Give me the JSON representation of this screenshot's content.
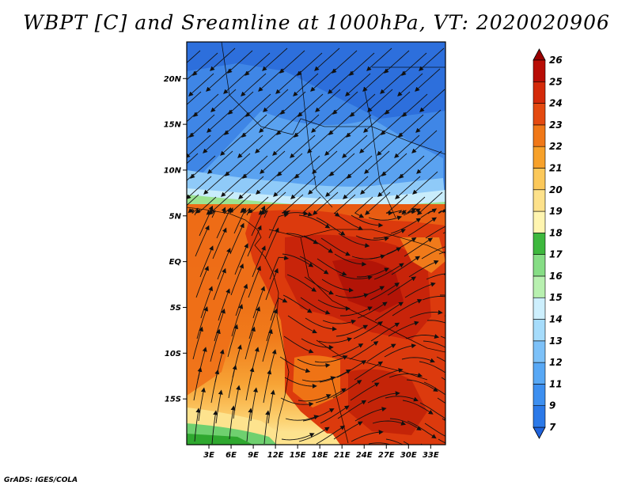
{
  "title": "WBPT [C] and Sreamline at 1000hPa, VT: 2020020906",
  "footer": "GrADS: IGES/COLA",
  "map": {
    "lon_range": [
      0,
      35
    ],
    "lat_range": [
      -20,
      24
    ],
    "lon_ticks": [
      "3E",
      "6E",
      "9E",
      "12E",
      "15E",
      "18E",
      "21E",
      "24E",
      "27E",
      "30E",
      "33E"
    ],
    "lat_ticks": [
      "20N",
      "15N",
      "10N",
      "5N",
      "EQ",
      "5S",
      "10S",
      "15S"
    ]
  },
  "colorbar": {
    "levels": [
      "7",
      "9",
      "11",
      "12",
      "13",
      "14",
      "15",
      "16",
      "17",
      "18",
      "19",
      "20",
      "21",
      "22",
      "23",
      "24",
      "25",
      "26"
    ],
    "colors": [
      "#1f63dc",
      "#2b79e8",
      "#3d8ff0",
      "#58a8f5",
      "#7dc1f8",
      "#a6dcfb",
      "#cdeffd",
      "#b8f0b0",
      "#86dd85",
      "#3eb83e",
      "#fff5b0",
      "#fde18a",
      "#fbc85a",
      "#f7a12a",
      "#f07818",
      "#e44a10",
      "#d42a0a",
      "#b80d06",
      "#9a0000"
    ]
  }
}
